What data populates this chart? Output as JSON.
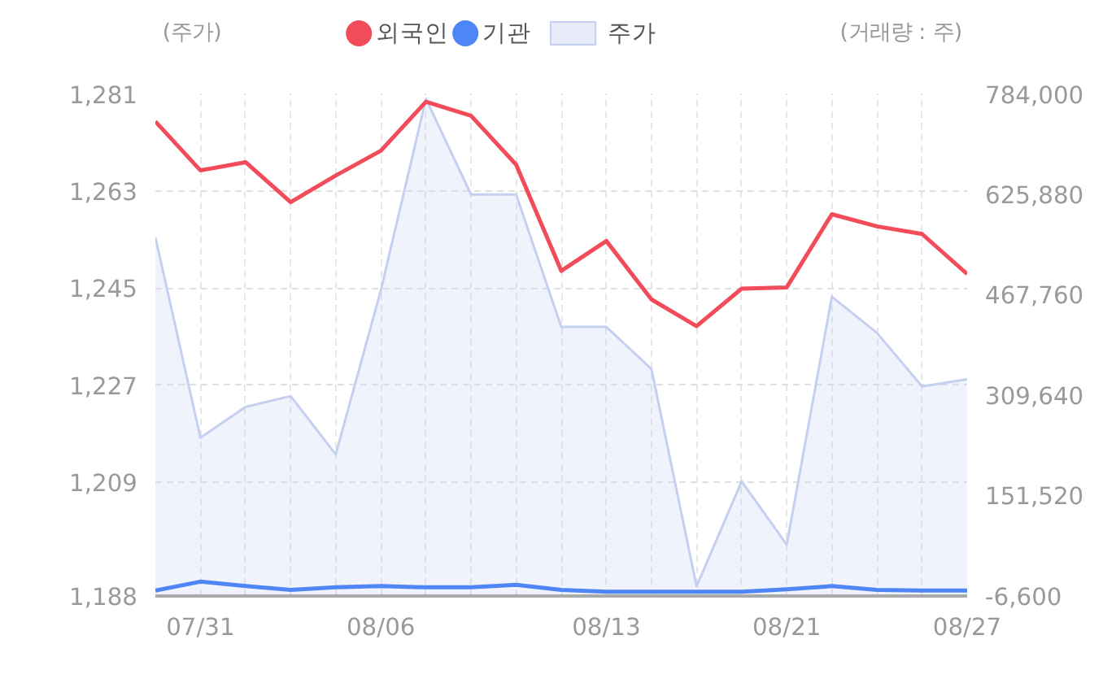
{
  "chart_data": {
    "type": "line",
    "ylabel": "(주가)",
    "y2label": "(거래량 : 주)",
    "categories": [
      null,
      "07/31",
      null,
      null,
      null,
      "08/06",
      null,
      null,
      null,
      null,
      "08/13",
      null,
      null,
      null,
      "08/21",
      null,
      null,
      null,
      "08/27"
    ],
    "series": [
      {
        "name": "외국인",
        "color": "#f24b5a",
        "axis": "y2",
        "values": [
          740000,
          663000,
          676000,
          613000,
          655000,
          694000,
          771000,
          749000,
          672000,
          505000,
          552000,
          460000,
          418000,
          477000,
          479000,
          594000,
          575000,
          563000,
          500000
        ]
      },
      {
        "name": "기관",
        "color": "#4f86f7",
        "axis": "y2",
        "values": [
          2000,
          16000,
          9000,
          3000,
          7000,
          9000,
          7000,
          7000,
          11000,
          3000,
          0,
          0,
          0,
          0,
          4000,
          9000,
          3000,
          2000,
          2000
        ]
      },
      {
        "name": "주가",
        "type": "area",
        "color": "#c5d0f0",
        "values": [
          1254.4,
          1217.3,
          1223.0,
          1225.0,
          1214.2,
          1244.6,
          1280,
          1262.3,
          1262.3,
          1237.8,
          1237.8,
          1230,
          1189.8,
          1209.2,
          1197.5,
          1243.4,
          1236.7,
          1226.8,
          1228.1
        ]
      }
    ],
    "ylim": [
      1188,
      1281
    ],
    "yticks": [
      {
        "value": 1188,
        "label": "1,188"
      },
      {
        "value": 1209,
        "label": "1,209"
      },
      {
        "value": 1227,
        "label": "1,227"
      },
      {
        "value": 1245,
        "label": "1,245"
      },
      {
        "value": 1263,
        "label": "1,263"
      },
      {
        "value": 1281,
        "label": "1,281"
      }
    ],
    "y2lim": [
      -6600,
      784000
    ],
    "y2ticks": [
      {
        "value": -6600,
        "label": "-6,600"
      },
      {
        "value": 151520,
        "label": "151,520"
      },
      {
        "value": 309640,
        "label": "309,640"
      },
      {
        "value": 467760,
        "label": "467,760"
      },
      {
        "value": 625880,
        "label": "625,880"
      },
      {
        "value": 784000,
        "label": "784,000"
      }
    ],
    "grid": true,
    "legend": "top",
    "line_style": "solid"
  }
}
